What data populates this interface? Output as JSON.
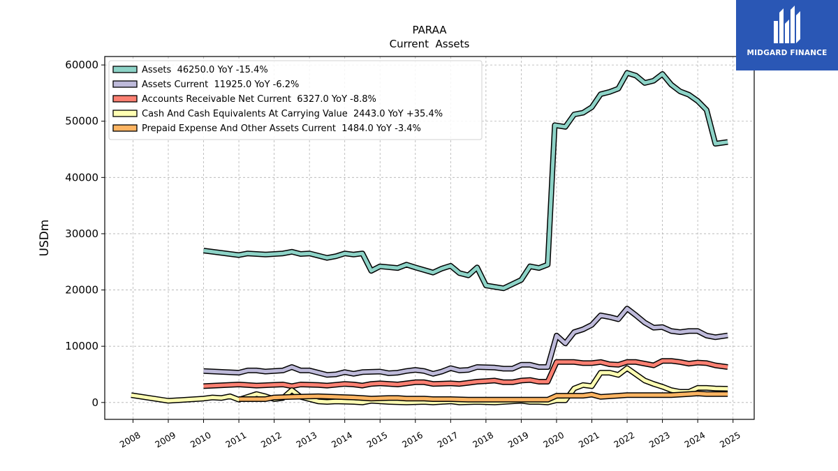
{
  "logo": {
    "text": "MIDGARD FINANCE",
    "bg_color": "#2a57b5"
  },
  "chart_data": {
    "type": "line",
    "title": "PARAA",
    "subtitle": "Current  Assets",
    "ylabel": "USDm",
    "xlim": [
      2007.2,
      2025.6
    ],
    "ylim": [
      -3000,
      61500
    ],
    "yticks": [
      0,
      10000,
      20000,
      30000,
      40000,
      50000,
      60000
    ],
    "xticks": [
      2008,
      2009,
      2010,
      2011,
      2012,
      2013,
      2014,
      2015,
      2016,
      2017,
      2018,
      2019,
      2020,
      2021,
      2022,
      2023,
      2024,
      2025
    ],
    "grid": true,
    "legend_position": "top-left",
    "series": [
      {
        "name": "Assets  46250.0 YoY -15.4%",
        "color": "#8dd3c7",
        "points": [
          [
            2010.0,
            27000
          ],
          [
            2011.0,
            26200
          ],
          [
            2011.25,
            26500
          ],
          [
            2011.75,
            26300
          ],
          [
            2012.25,
            26500
          ],
          [
            2012.5,
            26800
          ],
          [
            2012.75,
            26400
          ],
          [
            2013.0,
            26500
          ],
          [
            2013.5,
            25700
          ],
          [
            2013.75,
            26000
          ],
          [
            2014.0,
            26500
          ],
          [
            2014.25,
            26300
          ],
          [
            2014.5,
            26500
          ],
          [
            2014.75,
            23400
          ],
          [
            2015.0,
            24200
          ],
          [
            2015.5,
            23900
          ],
          [
            2015.75,
            24500
          ],
          [
            2016.0,
            24000
          ],
          [
            2016.5,
            23100
          ],
          [
            2016.75,
            23800
          ],
          [
            2017.0,
            24300
          ],
          [
            2017.25,
            23000
          ],
          [
            2017.5,
            22600
          ],
          [
            2017.75,
            24000
          ],
          [
            2018.0,
            20800
          ],
          [
            2018.5,
            20300
          ],
          [
            2019.0,
            21800
          ],
          [
            2019.25,
            24200
          ],
          [
            2019.5,
            23900
          ],
          [
            2019.75,
            24500
          ],
          [
            2019.95,
            49300
          ],
          [
            2020.25,
            49000
          ],
          [
            2020.5,
            51200
          ],
          [
            2020.75,
            51500
          ],
          [
            2021.0,
            52500
          ],
          [
            2021.25,
            54800
          ],
          [
            2021.5,
            55200
          ],
          [
            2021.75,
            55800
          ],
          [
            2022.0,
            58600
          ],
          [
            2022.25,
            58100
          ],
          [
            2022.5,
            56800
          ],
          [
            2022.75,
            57200
          ],
          [
            2023.0,
            58400
          ],
          [
            2023.25,
            56500
          ],
          [
            2023.5,
            55300
          ],
          [
            2023.75,
            54700
          ],
          [
            2024.0,
            53600
          ],
          [
            2024.25,
            52000
          ],
          [
            2024.5,
            46000
          ],
          [
            2024.85,
            46300
          ]
        ]
      },
      {
        "name": "Assets Current  11925.0 YoY -6.2%",
        "color": "#bebada",
        "points": [
          [
            2010.0,
            5600
          ],
          [
            2011.0,
            5300
          ],
          [
            2011.25,
            5700
          ],
          [
            2011.5,
            5700
          ],
          [
            2011.75,
            5500
          ],
          [
            2012.25,
            5700
          ],
          [
            2012.5,
            6300
          ],
          [
            2012.75,
            5700
          ],
          [
            2013.0,
            5700
          ],
          [
            2013.5,
            4900
          ],
          [
            2013.75,
            5000
          ],
          [
            2014.0,
            5400
          ],
          [
            2014.25,
            5100
          ],
          [
            2014.5,
            5400
          ],
          [
            2015.0,
            5500
          ],
          [
            2015.25,
            5200
          ],
          [
            2015.5,
            5300
          ],
          [
            2015.75,
            5600
          ],
          [
            2016.0,
            5800
          ],
          [
            2016.25,
            5600
          ],
          [
            2016.5,
            5100
          ],
          [
            2016.75,
            5500
          ],
          [
            2017.0,
            6100
          ],
          [
            2017.25,
            5700
          ],
          [
            2017.5,
            5800
          ],
          [
            2017.75,
            6300
          ],
          [
            2018.25,
            6200
          ],
          [
            2018.5,
            6000
          ],
          [
            2018.75,
            6000
          ],
          [
            2019.0,
            6700
          ],
          [
            2019.25,
            6700
          ],
          [
            2019.5,
            6300
          ],
          [
            2019.75,
            6300
          ],
          [
            2020.0,
            11900
          ],
          [
            2020.25,
            10500
          ],
          [
            2020.5,
            12500
          ],
          [
            2020.75,
            13000
          ],
          [
            2021.0,
            13800
          ],
          [
            2021.25,
            15500
          ],
          [
            2021.5,
            15200
          ],
          [
            2021.75,
            14800
          ],
          [
            2022.0,
            16700
          ],
          [
            2022.25,
            15500
          ],
          [
            2022.5,
            14200
          ],
          [
            2022.75,
            13300
          ],
          [
            2023.0,
            13400
          ],
          [
            2023.25,
            12700
          ],
          [
            2023.5,
            12500
          ],
          [
            2023.75,
            12700
          ],
          [
            2024.0,
            12700
          ],
          [
            2024.25,
            11900
          ],
          [
            2024.5,
            11600
          ],
          [
            2024.85,
            11925
          ]
        ]
      },
      {
        "name": "Accounts Receivable Net Current  6327.0 YoY -8.8%",
        "color": "#fb8072",
        "points": [
          [
            2010.0,
            2900
          ],
          [
            2011.0,
            3200
          ],
          [
            2011.5,
            3000
          ],
          [
            2012.25,
            3200
          ],
          [
            2012.5,
            2900
          ],
          [
            2012.75,
            3200
          ],
          [
            2013.25,
            3100
          ],
          [
            2013.5,
            3000
          ],
          [
            2014.0,
            3300
          ],
          [
            2014.25,
            3200
          ],
          [
            2014.5,
            3000
          ],
          [
            2014.75,
            3300
          ],
          [
            2015.0,
            3400
          ],
          [
            2015.5,
            3200
          ],
          [
            2016.0,
            3600
          ],
          [
            2016.25,
            3600
          ],
          [
            2016.5,
            3300
          ],
          [
            2017.0,
            3400
          ],
          [
            2017.25,
            3300
          ],
          [
            2017.5,
            3500
          ],
          [
            2017.75,
            3700
          ],
          [
            2018.0,
            3800
          ],
          [
            2018.25,
            3900
          ],
          [
            2018.5,
            3600
          ],
          [
            2018.75,
            3600
          ],
          [
            2019.0,
            3900
          ],
          [
            2019.25,
            4000
          ],
          [
            2019.5,
            3700
          ],
          [
            2019.75,
            3700
          ],
          [
            2020.0,
            7200
          ],
          [
            2020.5,
            7200
          ],
          [
            2020.75,
            7000
          ],
          [
            2021.0,
            7000
          ],
          [
            2021.25,
            7200
          ],
          [
            2021.5,
            6800
          ],
          [
            2021.75,
            6700
          ],
          [
            2022.0,
            7200
          ],
          [
            2022.25,
            7200
          ],
          [
            2022.5,
            6900
          ],
          [
            2022.75,
            6600
          ],
          [
            2023.0,
            7400
          ],
          [
            2023.25,
            7400
          ],
          [
            2023.5,
            7200
          ],
          [
            2023.75,
            6900
          ],
          [
            2024.0,
            7100
          ],
          [
            2024.25,
            7000
          ],
          [
            2024.5,
            6600
          ],
          [
            2024.85,
            6300
          ]
        ]
      },
      {
        "name": "Cash And Cash Equivalents At Carrying Value  2443.0 YoY +35.4%",
        "color": "#ffffb3",
        "points": [
          [
            2007.95,
            1300
          ],
          [
            2009.0,
            300
          ],
          [
            2010.0,
            700
          ],
          [
            2010.25,
            900
          ],
          [
            2010.5,
            800
          ],
          [
            2010.75,
            1100
          ],
          [
            2011.0,
            500
          ],
          [
            2011.25,
            1000
          ],
          [
            2011.5,
            1500
          ],
          [
            2011.75,
            1100
          ],
          [
            2012.0,
            600
          ],
          [
            2012.25,
            800
          ],
          [
            2012.5,
            2200
          ],
          [
            2012.75,
            1000
          ],
          [
            2013.0,
            600
          ],
          [
            2013.25,
            200
          ],
          [
            2013.5,
            100
          ],
          [
            2013.75,
            200
          ],
          [
            2014.25,
            100
          ],
          [
            2014.5,
            0
          ],
          [
            2014.75,
            300
          ],
          [
            2015.25,
            100
          ],
          [
            2015.75,
            0
          ],
          [
            2016.25,
            100
          ],
          [
            2016.5,
            0
          ],
          [
            2017.0,
            200
          ],
          [
            2017.25,
            0
          ],
          [
            2017.75,
            100
          ],
          [
            2018.25,
            0
          ],
          [
            2019.0,
            300
          ],
          [
            2019.25,
            100
          ],
          [
            2019.5,
            100
          ],
          [
            2019.75,
            0
          ],
          [
            2020.0,
            400
          ],
          [
            2020.25,
            400
          ],
          [
            2020.5,
            2500
          ],
          [
            2020.75,
            3100
          ],
          [
            2021.0,
            2900
          ],
          [
            2021.25,
            5300
          ],
          [
            2021.5,
            5300
          ],
          [
            2021.75,
            4900
          ],
          [
            2022.0,
            6100
          ],
          [
            2022.25,
            5000
          ],
          [
            2022.5,
            3900
          ],
          [
            2022.75,
            3300
          ],
          [
            2023.0,
            2800
          ],
          [
            2023.25,
            2200
          ],
          [
            2023.5,
            1900
          ],
          [
            2023.75,
            1900
          ],
          [
            2024.0,
            2600
          ],
          [
            2024.25,
            2600
          ],
          [
            2024.5,
            2500
          ],
          [
            2024.85,
            2443
          ]
        ]
      },
      {
        "name": "Prepaid Expense And Other Assets Current  1484.0 YoY -3.4%",
        "color": "#fdb462",
        "points": [
          [
            2011.0,
            600
          ],
          [
            2011.75,
            600
          ],
          [
            2012.0,
            900
          ],
          [
            2012.5,
            1000
          ],
          [
            2013.25,
            1100
          ],
          [
            2013.75,
            1000
          ],
          [
            2014.25,
            900
          ],
          [
            2014.5,
            800
          ],
          [
            2014.75,
            700
          ],
          [
            2015.25,
            800
          ],
          [
            2015.5,
            800
          ],
          [
            2015.75,
            700
          ],
          [
            2016.25,
            700
          ],
          [
            2016.5,
            600
          ],
          [
            2017.0,
            600
          ],
          [
            2017.5,
            500
          ],
          [
            2017.75,
            500
          ],
          [
            2018.25,
            500
          ],
          [
            2018.75,
            500
          ],
          [
            2019.25,
            500
          ],
          [
            2019.5,
            500
          ],
          [
            2019.75,
            500
          ],
          [
            2020.0,
            1200
          ],
          [
            2020.5,
            1200
          ],
          [
            2020.75,
            1200
          ],
          [
            2021.0,
            1400
          ],
          [
            2021.25,
            1000
          ],
          [
            2021.75,
            1200
          ],
          [
            2022.0,
            1300
          ],
          [
            2022.5,
            1300
          ],
          [
            2022.75,
            1300
          ],
          [
            2023.25,
            1300
          ],
          [
            2023.75,
            1500
          ],
          [
            2024.0,
            1600
          ],
          [
            2024.25,
            1500
          ],
          [
            2024.85,
            1484
          ]
        ]
      }
    ]
  }
}
